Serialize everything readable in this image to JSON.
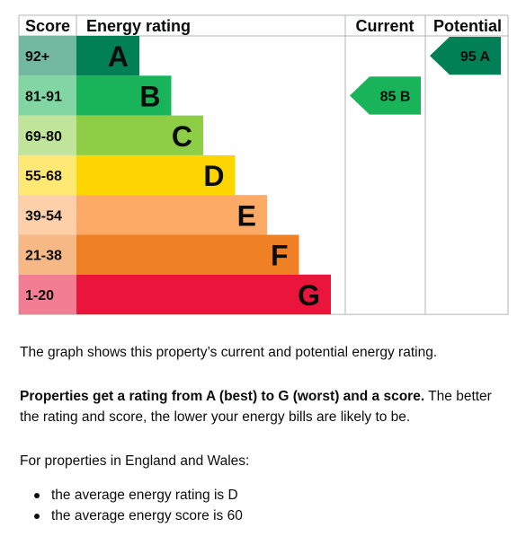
{
  "chart_data": {
    "type": "table",
    "headers": {
      "score": "Score",
      "rating": "Energy rating",
      "current": "Current",
      "potential": "Potential"
    },
    "bands": [
      {
        "range": "92+",
        "letter": "A",
        "color": "#008054"
      },
      {
        "range": "81-91",
        "letter": "B",
        "color": "#19b459"
      },
      {
        "range": "69-80",
        "letter": "C",
        "color": "#8dce46"
      },
      {
        "range": "55-68",
        "letter": "D",
        "color": "#ffd500"
      },
      {
        "range": "39-54",
        "letter": "E",
        "color": "#fcaa65"
      },
      {
        "range": "21-38",
        "letter": "F",
        "color": "#ef8023"
      },
      {
        "range": "1-20",
        "letter": "G",
        "color": "#e9153b"
      }
    ],
    "current": {
      "score": 85,
      "letter": "B",
      "label": "85 B",
      "color": "#19b459"
    },
    "potential": {
      "score": 95,
      "letter": "A",
      "label": "95 A",
      "color": "#008054"
    }
  },
  "text": {
    "intro": "The graph shows this property’s current and potential energy rating.",
    "properties_bold": "Properties get a rating from A (best) to G (worst) and a score.",
    "properties_rest": " The better the rating and score, the lower your energy bills are likely to be.",
    "region": "For properties in England and Wales:",
    "bullets": [
      "the average energy rating is D",
      "the average energy score is 60"
    ]
  }
}
